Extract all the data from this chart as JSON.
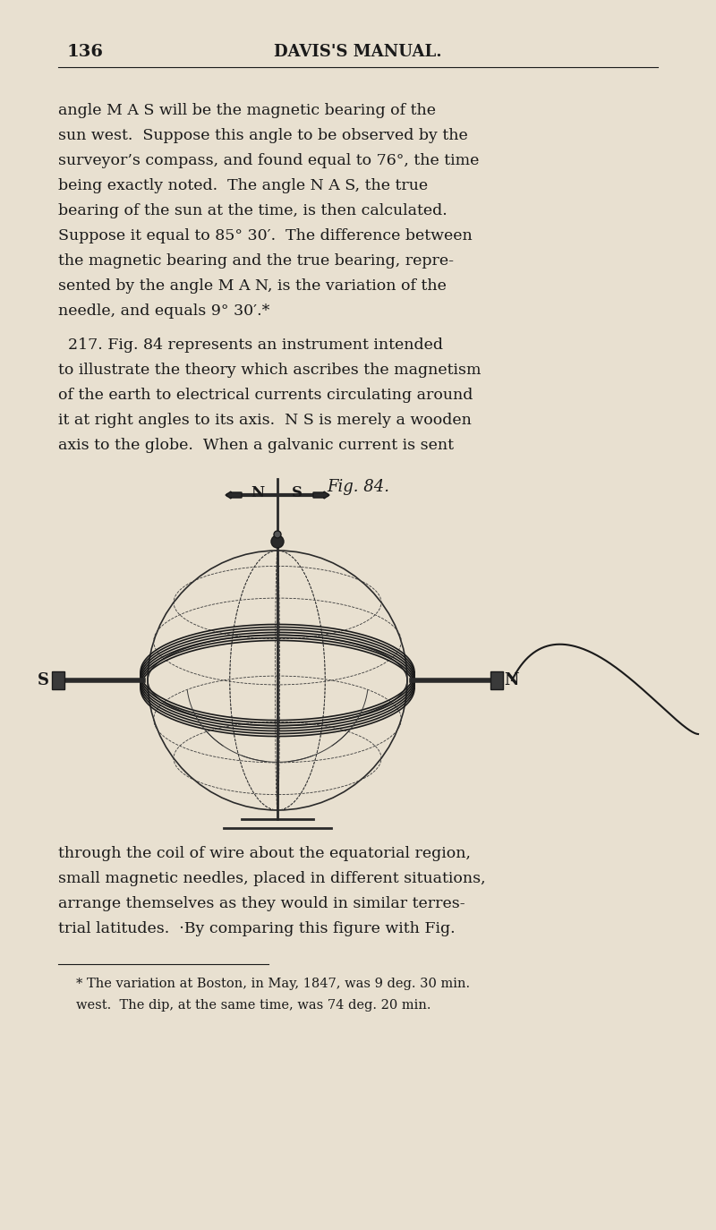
{
  "bg_color": "#e8e0d0",
  "page_bg": "#ddd8c8",
  "text_color": "#1a1a1a",
  "page_number": "136",
  "header": "DAVIS'S MANUAL.",
  "paragraph1": "angle M A S will be the magnetic bearing of the\nsun west.  Suppose this angle to be observed by the\nsurveyor’s compass, and found equal to 76°, the time\nbeing exactly noted.  The angle N A S, the true\nbearing of the sun at the time, is then calculated.\nSuppose it equal to 85° 30′.  The difference between\nthe magnetic bearing and the true bearing, repre-\nsented by the angle M A N, is the variation of the\nneedle, and equals 9° 30′.*",
  "paragraph2": "  217. Fig. 84 represents an instrument intended\nto illustrate the theory which ascribes the magnetism\nof the earth to electrical currents circulating around\nit at right angles to its axis.  N S is merely a wooden\naxis to the globe.  When a galvanic current is sent",
  "fig_caption": "Fig. 84.",
  "paragraph3": "through the coil of wire about the equatorial region,\nsmall magnetic needles, placed in different situations,\narrange themselves as they would in similar terres-\ntrial latitudes.  ·By comparing this figure with Fig.",
  "footnote_line": true,
  "footnote": "* The variation at Boston, in May, 1847, was 9 deg. 30 min.\nwest.  The dip, at the same time, was 74 deg. 20 min."
}
